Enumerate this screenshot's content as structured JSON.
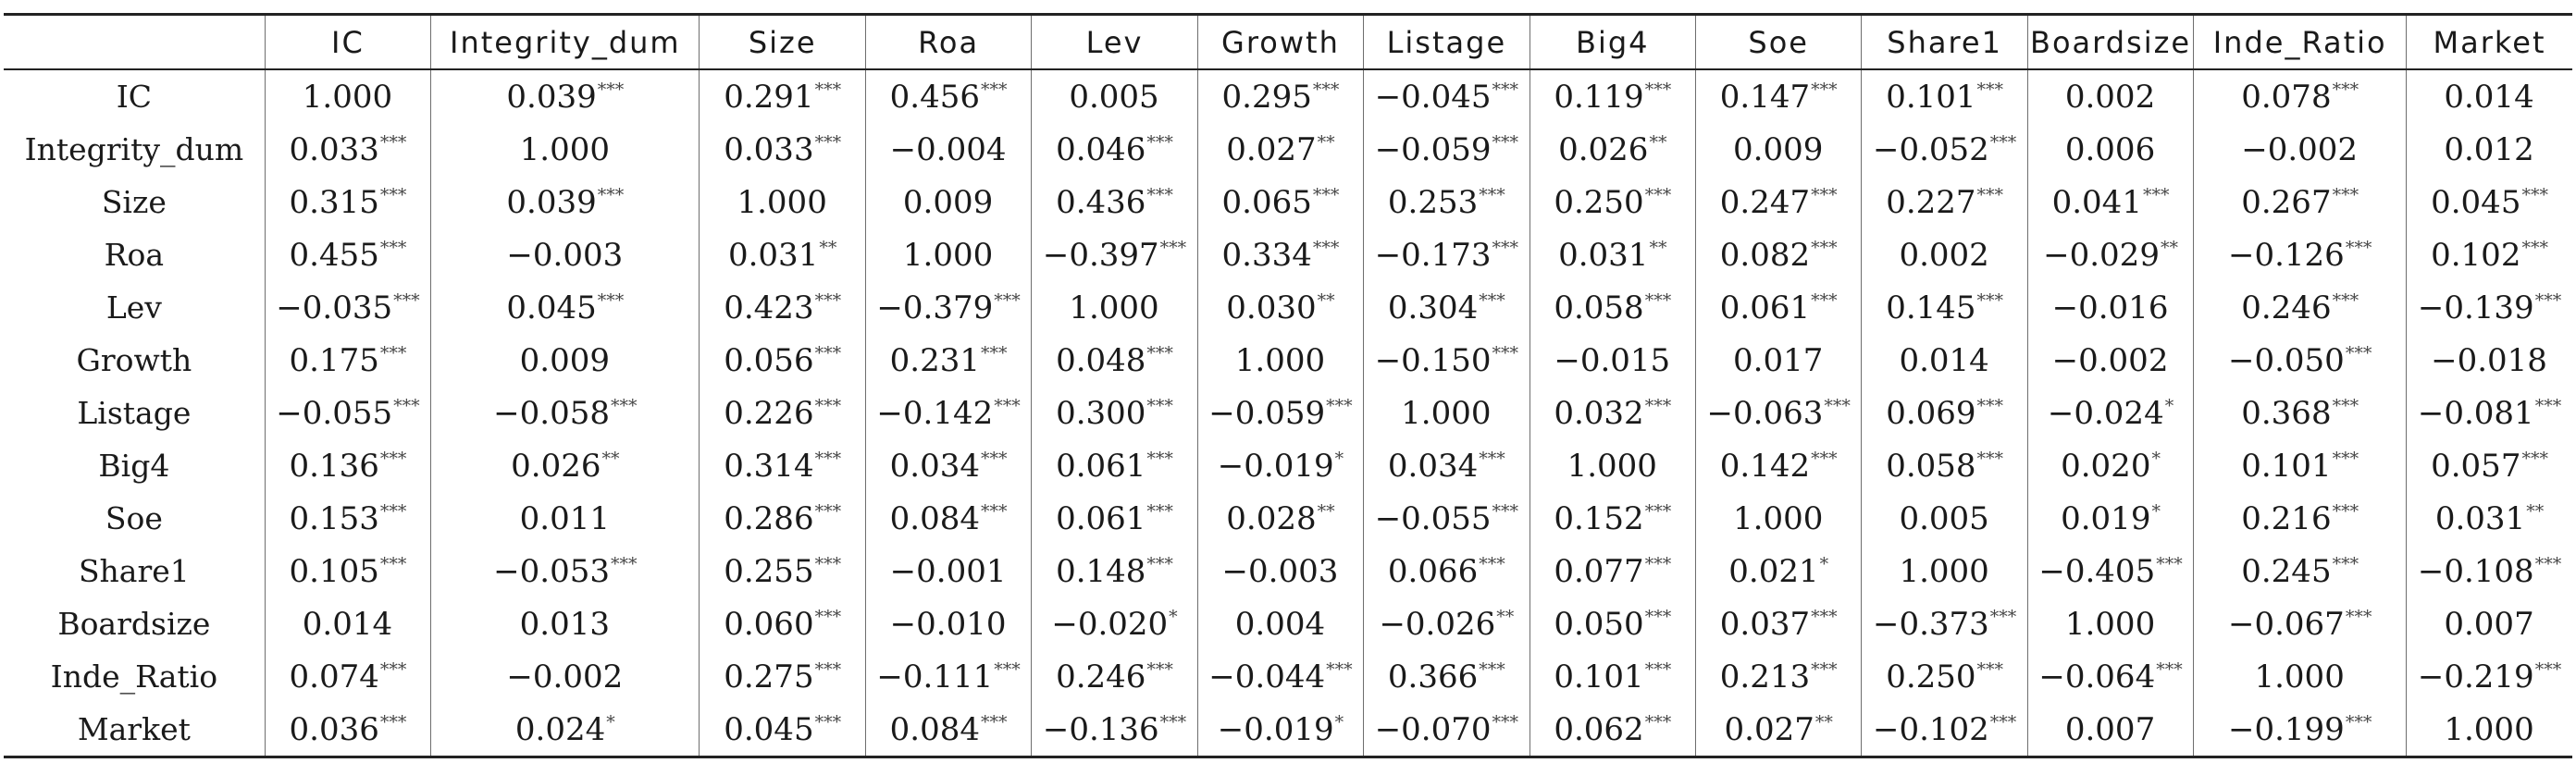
{
  "table": {
    "corner": "",
    "columns": [
      "IC",
      "Integrity_dum",
      "Size",
      "Roa",
      "Lev",
      "Growth",
      "Listage",
      "Big4",
      "Soe",
      "Share1",
      "Boardsize",
      "Inde_Ratio",
      "Market"
    ],
    "rows": [
      {
        "label": "IC",
        "cells": [
          [
            "1.000",
            ""
          ],
          [
            "0.039",
            "***"
          ],
          [
            "0.291",
            "***"
          ],
          [
            "0.456",
            "***"
          ],
          [
            "0.005",
            ""
          ],
          [
            "0.295",
            "***"
          ],
          [
            "−0.045",
            "***"
          ],
          [
            "0.119",
            "***"
          ],
          [
            "0.147",
            "***"
          ],
          [
            "0.101",
            "***"
          ],
          [
            "0.002",
            ""
          ],
          [
            "0.078",
            "***"
          ],
          [
            "0.014",
            ""
          ]
        ]
      },
      {
        "label": "Integrity_dum",
        "cells": [
          [
            "0.033",
            "***"
          ],
          [
            "1.000",
            ""
          ],
          [
            "0.033",
            "***"
          ],
          [
            "−0.004",
            ""
          ],
          [
            "0.046",
            "***"
          ],
          [
            "0.027",
            "**"
          ],
          [
            "−0.059",
            "***"
          ],
          [
            "0.026",
            "**"
          ],
          [
            "0.009",
            ""
          ],
          [
            "−0.052",
            "***"
          ],
          [
            "0.006",
            ""
          ],
          [
            "−0.002",
            ""
          ],
          [
            "0.012",
            ""
          ]
        ]
      },
      {
        "label": "Size",
        "cells": [
          [
            "0.315",
            "***"
          ],
          [
            "0.039",
            "***"
          ],
          [
            "1.000",
            ""
          ],
          [
            "0.009",
            ""
          ],
          [
            "0.436",
            "***"
          ],
          [
            "0.065",
            "***"
          ],
          [
            "0.253",
            "***"
          ],
          [
            "0.250",
            "***"
          ],
          [
            "0.247",
            "***"
          ],
          [
            "0.227",
            "***"
          ],
          [
            "0.041",
            "***"
          ],
          [
            "0.267",
            "***"
          ],
          [
            "0.045",
            "***"
          ]
        ]
      },
      {
        "label": "Roa",
        "cells": [
          [
            "0.455",
            "***"
          ],
          [
            "−0.003",
            ""
          ],
          [
            "0.031",
            "**"
          ],
          [
            "1.000",
            ""
          ],
          [
            "−0.397",
            "***"
          ],
          [
            "0.334",
            "***"
          ],
          [
            "−0.173",
            "***"
          ],
          [
            "0.031",
            "**"
          ],
          [
            "0.082",
            "***"
          ],
          [
            "0.002",
            ""
          ],
          [
            "−0.029",
            "**"
          ],
          [
            "−0.126",
            "***"
          ],
          [
            "0.102",
            "***"
          ]
        ]
      },
      {
        "label": "Lev",
        "cells": [
          [
            "−0.035",
            "***"
          ],
          [
            "0.045",
            "***"
          ],
          [
            "0.423",
            "***"
          ],
          [
            "−0.379",
            "***"
          ],
          [
            "1.000",
            ""
          ],
          [
            "0.030",
            "**"
          ],
          [
            "0.304",
            "***"
          ],
          [
            "0.058",
            "***"
          ],
          [
            "0.061",
            "***"
          ],
          [
            "0.145",
            "***"
          ],
          [
            "−0.016",
            ""
          ],
          [
            "0.246",
            "***"
          ],
          [
            "−0.139",
            "***"
          ]
        ]
      },
      {
        "label": "Growth",
        "cells": [
          [
            "0.175",
            "***"
          ],
          [
            "0.009",
            ""
          ],
          [
            "0.056",
            "***"
          ],
          [
            "0.231",
            "***"
          ],
          [
            "0.048",
            "***"
          ],
          [
            "1.000",
            ""
          ],
          [
            "−0.150",
            "***"
          ],
          [
            "−0.015",
            ""
          ],
          [
            "0.017",
            ""
          ],
          [
            "0.014",
            ""
          ],
          [
            "−0.002",
            ""
          ],
          [
            "−0.050",
            "***"
          ],
          [
            "−0.018",
            ""
          ]
        ]
      },
      {
        "label": "Listage",
        "cells": [
          [
            "−0.055",
            "***"
          ],
          [
            "−0.058",
            "***"
          ],
          [
            "0.226",
            "***"
          ],
          [
            "−0.142",
            "***"
          ],
          [
            "0.300",
            "***"
          ],
          [
            "−0.059",
            "***"
          ],
          [
            "1.000",
            ""
          ],
          [
            "0.032",
            "***"
          ],
          [
            "−0.063",
            "***"
          ],
          [
            "0.069",
            "***"
          ],
          [
            "−0.024",
            "*"
          ],
          [
            "0.368",
            "***"
          ],
          [
            "−0.081",
            "***"
          ]
        ]
      },
      {
        "label": "Big4",
        "cells": [
          [
            "0.136",
            "***"
          ],
          [
            "0.026",
            "**"
          ],
          [
            "0.314",
            "***"
          ],
          [
            "0.034",
            "***"
          ],
          [
            "0.061",
            "***"
          ],
          [
            "−0.019",
            "*"
          ],
          [
            "0.034",
            "***"
          ],
          [
            "1.000",
            ""
          ],
          [
            "0.142",
            "***"
          ],
          [
            "0.058",
            "***"
          ],
          [
            "0.020",
            "*"
          ],
          [
            "0.101",
            "***"
          ],
          [
            "0.057",
            "***"
          ]
        ]
      },
      {
        "label": "Soe",
        "cells": [
          [
            "0.153",
            "***"
          ],
          [
            "0.011",
            ""
          ],
          [
            "0.286",
            "***"
          ],
          [
            "0.084",
            "***"
          ],
          [
            "0.061",
            "***"
          ],
          [
            "0.028",
            "**"
          ],
          [
            "−0.055",
            "***"
          ],
          [
            "0.152",
            "***"
          ],
          [
            "1.000",
            ""
          ],
          [
            "0.005",
            ""
          ],
          [
            "0.019",
            "*"
          ],
          [
            "0.216",
            "***"
          ],
          [
            "0.031",
            "**"
          ]
        ]
      },
      {
        "label": "Share1",
        "cells": [
          [
            "0.105",
            "***"
          ],
          [
            "−0.053",
            "***"
          ],
          [
            "0.255",
            "***"
          ],
          [
            "−0.001",
            ""
          ],
          [
            "0.148",
            "***"
          ],
          [
            "−0.003",
            ""
          ],
          [
            "0.066",
            "***"
          ],
          [
            "0.077",
            "***"
          ],
          [
            "0.021",
            "*"
          ],
          [
            "1.000",
            ""
          ],
          [
            "−0.405",
            "***"
          ],
          [
            "0.245",
            "***"
          ],
          [
            "−0.108",
            "***"
          ]
        ]
      },
      {
        "label": "Boardsize",
        "cells": [
          [
            "0.014",
            ""
          ],
          [
            "0.013",
            ""
          ],
          [
            "0.060",
            "***"
          ],
          [
            "−0.010",
            ""
          ],
          [
            "−0.020",
            "*"
          ],
          [
            "0.004",
            ""
          ],
          [
            "−0.026",
            "**"
          ],
          [
            "0.050",
            "***"
          ],
          [
            "0.037",
            "***"
          ],
          [
            "−0.373",
            "***"
          ],
          [
            "1.000",
            ""
          ],
          [
            "−0.067",
            "***"
          ],
          [
            "0.007",
            ""
          ]
        ]
      },
      {
        "label": "Inde_Ratio",
        "cells": [
          [
            "0.074",
            "***"
          ],
          [
            "−0.002",
            ""
          ],
          [
            "0.275",
            "***"
          ],
          [
            "−0.111",
            "***"
          ],
          [
            "0.246",
            "***"
          ],
          [
            "−0.044",
            "***"
          ],
          [
            "0.366",
            "***"
          ],
          [
            "0.101",
            "***"
          ],
          [
            "0.213",
            "***"
          ],
          [
            "0.250",
            "***"
          ],
          [
            "−0.064",
            "***"
          ],
          [
            "1.000",
            ""
          ],
          [
            "−0.219",
            "***"
          ]
        ]
      },
      {
        "label": "Market",
        "cells": [
          [
            "0.036",
            "***"
          ],
          [
            "0.024",
            "*"
          ],
          [
            "0.045",
            "***"
          ],
          [
            "0.084",
            "***"
          ],
          [
            "−0.136",
            "***"
          ],
          [
            "−0.019",
            "*"
          ],
          [
            "−0.070",
            "***"
          ],
          [
            "0.062",
            "***"
          ],
          [
            "0.027",
            "**"
          ],
          [
            "−0.102",
            "***"
          ],
          [
            "0.007",
            ""
          ],
          [
            "−0.199",
            "***"
          ],
          [
            "1.000",
            ""
          ]
        ]
      }
    ]
  }
}
